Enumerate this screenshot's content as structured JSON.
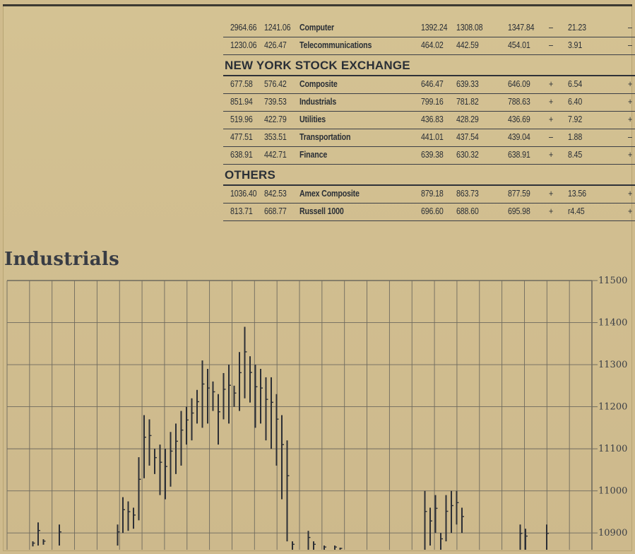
{
  "table": {
    "top_rows": [
      {
        "hi": "2964.66",
        "lo": "1241.06",
        "name": "Computer",
        "h2": "1392.24",
        "l2": "1308.08",
        "close": "1347.84",
        "sign": "–",
        "chg": "21.23",
        "edge": "–"
      },
      {
        "hi": "1230.06",
        "lo": "426.47",
        "name": "Telecommunications",
        "h2": "464.02",
        "l2": "442.59",
        "close": "454.01",
        "sign": "–",
        "chg": "3.91",
        "edge": "–"
      }
    ],
    "sections": [
      {
        "title": "NEW YORK STOCK EXCHANGE",
        "rows": [
          {
            "hi": "677.58",
            "lo": "576.42",
            "name": "Composite",
            "h2": "646.47",
            "l2": "639.33",
            "close": "646.09",
            "sign": "+",
            "chg": "6.54",
            "edge": "+"
          },
          {
            "hi": "851.94",
            "lo": "739.53",
            "name": "Industrials",
            "h2": "799.16",
            "l2": "781.82",
            "close": "788.63",
            "sign": "+",
            "chg": "6.40",
            "edge": "+"
          },
          {
            "hi": "519.96",
            "lo": "422.79",
            "name": "Utilities",
            "h2": "436.83",
            "l2": "428.29",
            "close": "436.69",
            "sign": "+",
            "chg": "7.92",
            "edge": "+"
          },
          {
            "hi": "477.51",
            "lo": "353.51",
            "name": "Transportation",
            "h2": "441.01",
            "l2": "437.54",
            "close": "439.04",
            "sign": "–",
            "chg": "1.88",
            "edge": "–"
          },
          {
            "hi": "638.91",
            "lo": "442.71",
            "name": "Finance",
            "h2": "639.38",
            "l2": "630.32",
            "close": "638.91",
            "sign": "+",
            "chg": "8.45",
            "edge": "+"
          }
        ]
      },
      {
        "title": "OTHERS",
        "rows": [
          {
            "hi": "1036.40",
            "lo": "842.53",
            "name": "Amex Composite",
            "h2": "879.18",
            "l2": "863.73",
            "close": "877.59",
            "sign": "+",
            "chg": "13.56",
            "edge": "+"
          },
          {
            "hi": "813.71",
            "lo": "668.77",
            "name": "Russell 1000",
            "h2": "696.60",
            "l2": "688.60",
            "close": "695.98",
            "sign": "+",
            "chg": "r4.45",
            "edge": "+"
          }
        ]
      }
    ]
  },
  "chart_data": {
    "type": "line",
    "title": "Industrials",
    "xlabel": "",
    "ylabel": "",
    "ylim": [
      10860,
      11500
    ],
    "yticks": [
      10900,
      11000,
      11100,
      11200,
      11300,
      11400,
      11500
    ],
    "grid": true,
    "series": [
      {
        "hilo": [
          [
            3,
            10868,
            10880
          ],
          [
            4,
            10870,
            10925
          ],
          [
            5,
            10872,
            10885
          ],
          [
            8,
            10870,
            10920
          ],
          [
            19,
            10870,
            10920
          ],
          [
            20,
            10900,
            10985
          ],
          [
            21,
            10905,
            10975
          ],
          [
            22,
            10910,
            10960
          ],
          [
            23,
            10930,
            11080
          ],
          [
            24,
            11030,
            11180
          ],
          [
            25,
            11060,
            11170
          ],
          [
            26,
            11040,
            11100
          ],
          [
            27,
            10990,
            11110
          ],
          [
            28,
            10980,
            11100
          ],
          [
            29,
            11010,
            11140
          ],
          [
            30,
            11040,
            11160
          ],
          [
            31,
            11060,
            11190
          ],
          [
            32,
            11110,
            11200
          ],
          [
            33,
            11120,
            11220
          ],
          [
            34,
            11160,
            11240
          ],
          [
            35,
            11150,
            11310
          ],
          [
            36,
            11160,
            11290
          ],
          [
            37,
            11190,
            11260
          ],
          [
            38,
            11110,
            11230
          ],
          [
            39,
            11170,
            11280
          ],
          [
            40,
            11160,
            11300
          ],
          [
            41,
            11200,
            11250
          ],
          [
            42,
            11190,
            11330
          ],
          [
            43,
            11220,
            11390
          ],
          [
            44,
            11210,
            11320
          ],
          [
            45,
            11150,
            11300
          ],
          [
            46,
            11160,
            11290
          ],
          [
            47,
            11120,
            11270
          ],
          [
            48,
            11100,
            11270
          ],
          [
            49,
            11060,
            11230
          ],
          [
            50,
            10980,
            11180
          ],
          [
            51,
            10880,
            11120
          ],
          [
            52,
            10860,
            10880
          ],
          [
            55,
            10860,
            10905
          ],
          [
            56,
            10860,
            10880
          ],
          [
            58,
            10860,
            10870
          ],
          [
            60,
            10860,
            10870
          ],
          [
            61,
            10860,
            10865
          ],
          [
            77,
            10860,
            11000
          ],
          [
            78,
            10870,
            10960
          ],
          [
            79,
            10900,
            10990
          ],
          [
            80,
            10860,
            10900
          ],
          [
            81,
            10880,
            10990
          ],
          [
            82,
            10900,
            11000
          ],
          [
            83,
            10920,
            11000
          ],
          [
            84,
            10900,
            10960
          ],
          [
            95,
            10860,
            10920
          ],
          [
            96,
            10860,
            10910
          ],
          [
            100,
            10860,
            10920
          ]
        ]
      }
    ]
  }
}
